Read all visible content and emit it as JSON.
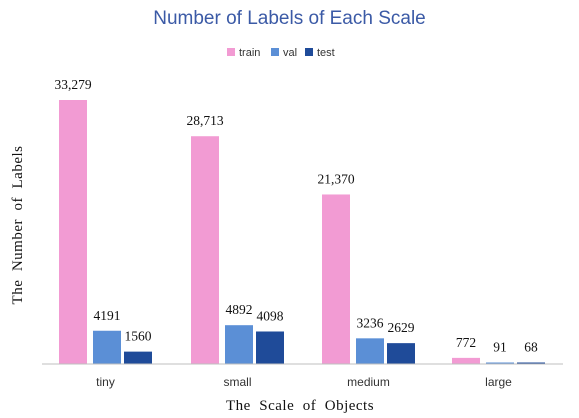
{
  "chart_data": {
    "type": "bar",
    "title": "Number of Labels of Each Scale",
    "xlabel": "The  Scale  of  Objects",
    "ylabel": "The  Number  of  Labels",
    "categories": [
      "tiny",
      "small",
      "medium",
      "large"
    ],
    "series": [
      {
        "name": "train",
        "color": "#f29bd3",
        "values": [
          33279,
          28713,
          21370,
          772
        ],
        "labels": [
          "33,279",
          "28,713",
          "21,370",
          "772"
        ]
      },
      {
        "name": "val",
        "color": "#5b8fd6",
        "values": [
          4191,
          4892,
          3236,
          91
        ],
        "labels": [
          "4191",
          "4892",
          "3236",
          "91"
        ]
      },
      {
        "name": "test",
        "color": "#1f4b99",
        "values": [
          1560,
          4098,
          2629,
          68
        ],
        "labels": [
          "1560",
          "4098",
          "2629",
          "68"
        ]
      }
    ],
    "ylim": [
      0,
      35000
    ],
    "grid": false,
    "legend_position": "top-center"
  }
}
